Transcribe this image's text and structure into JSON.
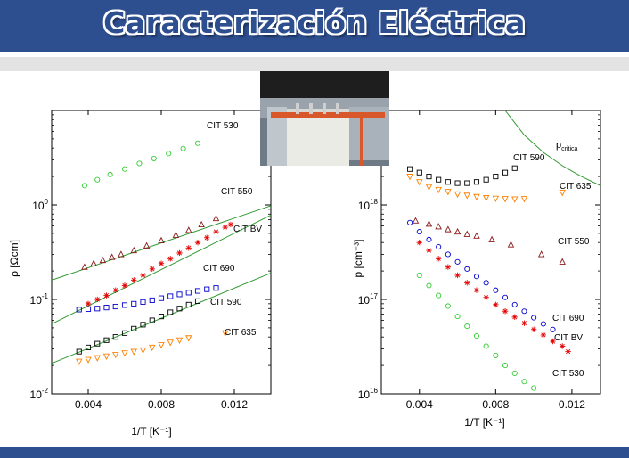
{
  "header": {
    "title": "Caracterización Eléctrica"
  },
  "chart_data": [
    {
      "type": "scatter",
      "title": "",
      "xlabel": "1/T  [K⁻¹]",
      "ylabel": "ρ  [Ωcm]",
      "yscale": "log",
      "xlim": [
        0.002,
        0.014
      ],
      "ylim": [
        0.01,
        10
      ],
      "xticks": [
        "0.004",
        "0.008",
        "0.012"
      ],
      "ytick_labels": [
        {
          "base": "10",
          "exp": "0"
        },
        {
          "base": "10",
          "exp": "-1"
        },
        {
          "base": "10",
          "exp": "-2"
        }
      ],
      "series": [
        {
          "name": "CIT 530",
          "color": "#33cc33",
          "marker": "circle",
          "x": [
            0.0038,
            0.0045,
            0.0052,
            0.006,
            0.0068,
            0.0076,
            0.0084,
            0.0092,
            0.01
          ],
          "y": [
            1.6,
            1.85,
            2.1,
            2.4,
            2.75,
            3.1,
            3.5,
            3.95,
            4.5
          ]
        },
        {
          "name": "CIT 550",
          "color": "#8b1a1a",
          "marker": "triangle",
          "x": [
            0.0038,
            0.0043,
            0.0048,
            0.0053,
            0.0058,
            0.0065,
            0.0072,
            0.008,
            0.0088,
            0.0095,
            0.0102,
            0.011
          ],
          "y": [
            0.22,
            0.24,
            0.26,
            0.28,
            0.3,
            0.33,
            0.37,
            0.42,
            0.48,
            0.54,
            0.62,
            0.72
          ]
        },
        {
          "name": "CIT BV",
          "color": "#e60000",
          "marker": "star",
          "x": [
            0.004,
            0.0045,
            0.005,
            0.0055,
            0.006,
            0.0065,
            0.007,
            0.0075,
            0.008,
            0.0085,
            0.009,
            0.0095,
            0.01,
            0.0105,
            0.011,
            0.0115,
            0.0118
          ],
          "y": [
            0.09,
            0.1,
            0.11,
            0.125,
            0.14,
            0.16,
            0.18,
            0.21,
            0.24,
            0.27,
            0.31,
            0.35,
            0.4,
            0.45,
            0.52,
            0.58,
            0.62
          ]
        },
        {
          "name": "CIT 690",
          "color": "#0000cc",
          "marker": "square",
          "x": [
            0.0035,
            0.004,
            0.0045,
            0.005,
            0.0055,
            0.006,
            0.0065,
            0.007,
            0.0075,
            0.008,
            0.0085,
            0.009,
            0.0095,
            0.01,
            0.0105,
            0.011
          ],
          "y": [
            0.078,
            0.079,
            0.08,
            0.082,
            0.084,
            0.087,
            0.09,
            0.094,
            0.098,
            0.103,
            0.108,
            0.113,
            0.118,
            0.123,
            0.128,
            0.132
          ]
        },
        {
          "name": "CIT 590",
          "color": "#000000",
          "marker": "square",
          "x": [
            0.0035,
            0.004,
            0.0045,
            0.005,
            0.0055,
            0.006,
            0.0065,
            0.007,
            0.0075,
            0.008,
            0.0085,
            0.009,
            0.0095,
            0.01
          ],
          "y": [
            0.028,
            0.031,
            0.034,
            0.037,
            0.04,
            0.044,
            0.049,
            0.054,
            0.06,
            0.066,
            0.073,
            0.08,
            0.088,
            0.096
          ]
        },
        {
          "name": "CIT 635",
          "color": "#ff8000",
          "marker": "triangle-down",
          "x": [
            0.0035,
            0.004,
            0.0045,
            0.005,
            0.0055,
            0.006,
            0.0065,
            0.007,
            0.0075,
            0.008,
            0.0085,
            0.009,
            0.0095,
            0.0115
          ],
          "y": [
            0.022,
            0.023,
            0.024,
            0.025,
            0.026,
            0.027,
            0.028,
            0.029,
            0.031,
            0.033,
            0.035,
            0.037,
            0.039,
            0.044
          ]
        }
      ],
      "fit_lines": [
        {
          "color": "#339933",
          "x": [
            0.002,
            0.014
          ],
          "y": [
            0.16,
            0.98
          ]
        },
        {
          "color": "#339933",
          "x": [
            0.002,
            0.014
          ],
          "y": [
            0.055,
            0.78
          ]
        },
        {
          "color": "#339933",
          "x": [
            0.002,
            0.014
          ],
          "y": [
            0.021,
            0.19
          ]
        }
      ]
    },
    {
      "type": "scatter",
      "title": "",
      "xlabel": "1/T  [K⁻¹]",
      "ylabel": "p  [cm⁻³]",
      "yscale": "log",
      "xlim": [
        0.002,
        0.0135
      ],
      "ylim": [
        1e+16,
        1e+19
      ],
      "xticks": [
        "0.004",
        "0.008",
        "0.012"
      ],
      "ytick_labels": [
        {
          "base": "10",
          "exp": "18"
        },
        {
          "base": "10",
          "exp": "17"
        },
        {
          "base": "10",
          "exp": "16"
        }
      ],
      "series": [
        {
          "name": "CIT 590",
          "color": "#000000",
          "marker": "square",
          "x": [
            0.0035,
            0.004,
            0.0045,
            0.005,
            0.0055,
            0.006,
            0.0065,
            0.007,
            0.0075,
            0.008,
            0.0085,
            0.009
          ],
          "y": [
            2.4e+18,
            2.2e+18,
            2e+18,
            1.85e+18,
            1.75e+18,
            1.7e+18,
            1.7e+18,
            1.75e+18,
            1.85e+18,
            2e+18,
            2.2e+18,
            2.45e+18
          ]
        },
        {
          "name": "CIT 635",
          "color": "#ff8000",
          "marker": "triangle-down",
          "x": [
            0.0035,
            0.004,
            0.0045,
            0.005,
            0.0055,
            0.006,
            0.0065,
            0.007,
            0.0075,
            0.008,
            0.0085,
            0.009,
            0.0095,
            0.0115
          ],
          "y": [
            2e+18,
            1.75e+18,
            1.55e+18,
            1.45e+18,
            1.38e+18,
            1.3e+18,
            1.26e+18,
            1.22e+18,
            1.19e+18,
            1.17e+18,
            1.16e+18,
            1.15e+18,
            1.16e+18,
            1.35e+18
          ]
        },
        {
          "name": "CIT 550",
          "color": "#8b1a1a",
          "marker": "triangle",
          "x": [
            0.0038,
            0.0045,
            0.005,
            0.0055,
            0.006,
            0.0065,
            0.007,
            0.0078,
            0.0088,
            0.0104,
            0.0115
          ],
          "y": [
            6.8e+17,
            6.3e+17,
            5.9e+17,
            5.5e+17,
            5.2e+17,
            4.9e+17,
            4.7e+17,
            4.3e+17,
            3.8e+17,
            3e+17,
            2.5e+17
          ]
        },
        {
          "name": "CIT 690",
          "color": "#0000cc",
          "marker": "circle",
          "x": [
            0.0035,
            0.004,
            0.0045,
            0.005,
            0.0055,
            0.006,
            0.0065,
            0.007,
            0.0075,
            0.008,
            0.0085,
            0.009,
            0.0095,
            0.01,
            0.0105,
            0.011
          ],
          "y": [
            6.5e+17,
            5.2e+17,
            4.3e+17,
            3.6e+17,
            3e+17,
            2.5e+17,
            2.1e+17,
            1.75e+17,
            1.5e+17,
            1.25e+17,
            1.05e+17,
            8.8e+16,
            7.5e+16,
            6.4e+16,
            5.5e+16,
            4.8e+16
          ]
        },
        {
          "name": "CIT BV",
          "color": "#e60000",
          "marker": "star",
          "x": [
            0.004,
            0.0045,
            0.005,
            0.0055,
            0.006,
            0.0065,
            0.007,
            0.0075,
            0.008,
            0.0085,
            0.009,
            0.0095,
            0.01,
            0.0105,
            0.011,
            0.0115,
            0.0118
          ],
          "y": [
            4e+17,
            3.3e+17,
            2.7e+17,
            2.2e+17,
            1.8e+17,
            1.5e+17,
            1.25e+17,
            1.05e+17,
            8.8e+16,
            7.5e+16,
            6.5e+16,
            5.6e+16,
            4.8e+16,
            4.2e+16,
            3.6e+16,
            3.2e+16,
            2.8e+16
          ]
        },
        {
          "name": "CIT 530",
          "color": "#33cc33",
          "marker": "circle",
          "x": [
            0.004,
            0.0045,
            0.005,
            0.0055,
            0.006,
            0.0065,
            0.007,
            0.0075,
            0.008,
            0.0085,
            0.009,
            0.0095,
            0.01
          ],
          "y": [
            1.8e+17,
            1.4e+17,
            1.1e+17,
            8.5e+16,
            6.6e+16,
            5.2e+16,
            4.1e+16,
            3.2e+16,
            2.55e+16,
            2e+16,
            1.65e+16,
            1.35e+16,
            1.15e+16
          ]
        }
      ],
      "annotations": [
        {
          "base": "p",
          "sub": "critica"
        }
      ],
      "critical_line": {
        "color": "#339933",
        "x": [
          0.0085,
          0.0095,
          0.0105,
          0.0115,
          0.0125,
          0.0135
        ],
        "y": [
          1e+19,
          5.5e+18,
          3.6e+18,
          2.6e+18,
          2e+18,
          1.6e+18
        ]
      }
    }
  ]
}
